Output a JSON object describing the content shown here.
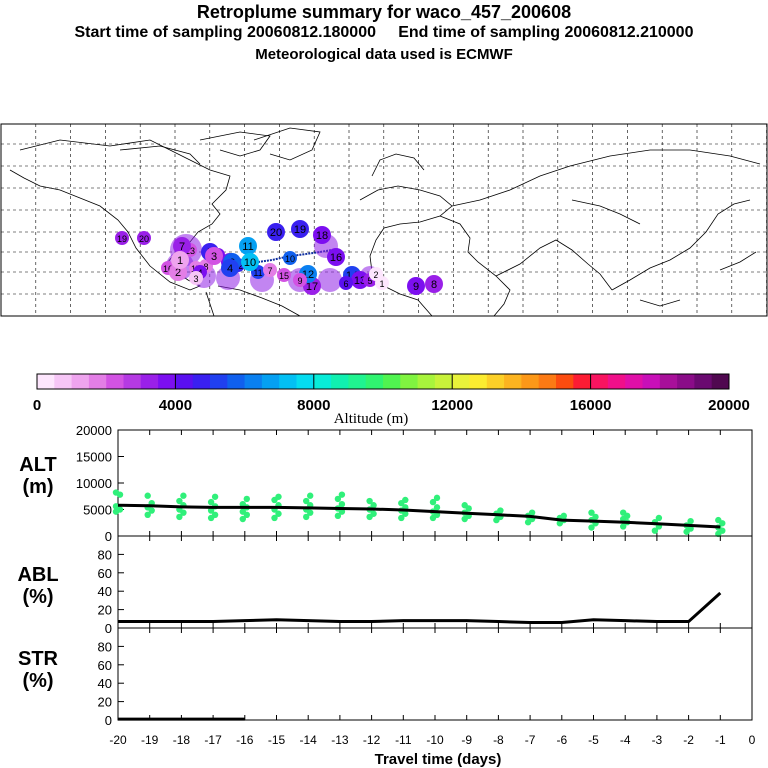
{
  "header": {
    "title": "Retroplume summary for waco_457_200608",
    "sampling_line": "Start time of sampling 20060812.180000     End time of sampling 20060812.210000",
    "met_line": "Meteorological data used is ECMWF"
  },
  "map": {
    "description_labels": [
      "20",
      "19",
      "18",
      "17",
      "16",
      "15",
      "14",
      "13",
      "12",
      "11",
      "10",
      "9",
      "8",
      "7",
      "6",
      "5",
      "4",
      "3",
      "2",
      "1"
    ],
    "markers": [
      {
        "day": 20,
        "alt": 4600
      },
      {
        "day": 19,
        "alt": 4800
      },
      {
        "day": 18,
        "alt": 3600
      },
      {
        "day": 17,
        "alt": 3400
      },
      {
        "day": 16,
        "alt": 3800
      },
      {
        "day": 15,
        "alt": 3500
      },
      {
        "day": 14,
        "alt": 5200
      },
      {
        "day": 13,
        "alt": 3800
      },
      {
        "day": 12,
        "alt": 6200
      },
      {
        "day": 11,
        "alt": 6800
      },
      {
        "day": 10,
        "alt": 7200
      },
      {
        "day": 9,
        "alt": 3600
      },
      {
        "day": 8,
        "alt": 3200
      },
      {
        "day": 7,
        "alt": 3000
      },
      {
        "day": 6,
        "alt": 5600
      },
      {
        "day": 5,
        "alt": 4800
      },
      {
        "day": 4,
        "alt": 5400
      },
      {
        "day": 3,
        "alt": 2200
      },
      {
        "day": 2,
        "alt": 1600
      },
      {
        "day": 1,
        "alt": 1000
      }
    ]
  },
  "colorbar": {
    "label": "Altitude (m)",
    "ticks": [
      "0",
      "4000",
      "8000",
      "12000",
      "16000",
      "20000"
    ],
    "colors": [
      "#fde6fd",
      "#f6c6f6",
      "#eea4ee",
      "#e37ee6",
      "#d253e3",
      "#b53ae3",
      "#9a20e8",
      "#7c0ff0",
      "#5a10f0",
      "#3a20f0",
      "#2040f0",
      "#1060ee",
      "#0a80f0",
      "#05a0f2",
      "#03c0f4",
      "#05dcf0",
      "#08ecd8",
      "#10f0b0",
      "#20f490",
      "#30f470",
      "#50f450",
      "#80f440",
      "#a8f43c",
      "#c8f23a",
      "#e8f23a",
      "#fcec30",
      "#fcd028",
      "#fcb420",
      "#fc9818",
      "#fc7a14",
      "#fc4c10",
      "#fc1c34",
      "#f81460",
      "#f0108a",
      "#e010a8",
      "#c810b8",
      "#a8109a",
      "#8a0c88",
      "#6a0a70",
      "#500850"
    ]
  },
  "chart_data": [
    {
      "type": "line",
      "panel": "ALT",
      "ylabel": "ALT\n(m)",
      "ylim": [
        0,
        20000
      ],
      "yticks": [
        "0",
        "5000",
        "10000",
        "15000",
        "20000"
      ],
      "x": [
        -20,
        -19,
        -18,
        -17,
        -16,
        -15,
        -14,
        -13,
        -12,
        -11,
        -10,
        -9,
        -8,
        -7,
        -6,
        -5,
        -4,
        -3,
        -2,
        -1
      ],
      "values": [
        5800,
        5700,
        5500,
        5400,
        5400,
        5400,
        5300,
        5200,
        5100,
        4900,
        4600,
        4300,
        4000,
        3700,
        3000,
        2800,
        2600,
        2300,
        2000,
        1700
      ],
      "scatter": [
        {
          "x": -20,
          "y": [
            4600,
            5000,
            5600,
            7800,
            8200
          ]
        },
        {
          "x": -19,
          "y": [
            4000,
            4800,
            5400,
            6200,
            7600
          ]
        },
        {
          "x": -18,
          "y": [
            3600,
            4400,
            5000,
            5800,
            6600,
            7600
          ]
        },
        {
          "x": -17,
          "y": [
            3400,
            4000,
            4800,
            5600,
            6400,
            7400
          ]
        },
        {
          "x": -16,
          "y": [
            3200,
            4000,
            4600,
            5400,
            6000,
            7000
          ]
        },
        {
          "x": -15,
          "y": [
            3400,
            4200,
            5000,
            5800,
            6800,
            7400
          ]
        },
        {
          "x": -14,
          "y": [
            3600,
            4400,
            5000,
            5800,
            6600,
            7600
          ]
        },
        {
          "x": -13,
          "y": [
            3800,
            4600,
            5200,
            6000,
            7000,
            7800
          ]
        },
        {
          "x": -12,
          "y": [
            3600,
            4200,
            5000,
            5800,
            6600
          ]
        },
        {
          "x": -11,
          "y": [
            3400,
            4200,
            4800,
            5400,
            6200,
            6800
          ]
        },
        {
          "x": -10,
          "y": [
            3400,
            4000,
            4600,
            5400,
            6400,
            7200
          ]
        },
        {
          "x": -9,
          "y": [
            3200,
            3800,
            4400,
            5200,
            5800
          ]
        },
        {
          "x": -8,
          "y": [
            3000,
            3600,
            4200,
            4800
          ]
        },
        {
          "x": -7,
          "y": [
            2600,
            3200,
            3800,
            4400
          ]
        },
        {
          "x": -6,
          "y": [
            2400,
            3000,
            3400,
            3800
          ]
        },
        {
          "x": -5,
          "y": [
            1600,
            2400,
            3000,
            3600,
            4400
          ]
        },
        {
          "x": -4,
          "y": [
            1800,
            2600,
            3200,
            3800,
            4400
          ]
        },
        {
          "x": -3,
          "y": [
            1000,
            1800,
            2600,
            3400
          ]
        },
        {
          "x": -2,
          "y": [
            800,
            1400,
            2000,
            2800
          ]
        },
        {
          "x": -1,
          "y": [
            400,
            1000,
            1600,
            2400,
            3000
          ]
        }
      ]
    },
    {
      "type": "line",
      "panel": "ABL",
      "ylabel": "ABL\n(%)",
      "ylim": [
        0,
        100
      ],
      "yticks": [
        "0",
        "20",
        "40",
        "60",
        "80"
      ],
      "x": [
        -20,
        -19,
        -18,
        -17,
        -16,
        -15,
        -14,
        -13,
        -12,
        -11,
        -10,
        -9,
        -8,
        -7,
        -6,
        -5,
        -4,
        -3,
        -2,
        -1
      ],
      "values": [
        7,
        7,
        7,
        7,
        8,
        9,
        8,
        7,
        7,
        8,
        8,
        8,
        7,
        6,
        6,
        9,
        8,
        7,
        7,
        38
      ]
    },
    {
      "type": "line",
      "panel": "STR",
      "ylabel": "STR\n(%)",
      "ylim": [
        0,
        100
      ],
      "yticks": [
        "0",
        "20",
        "40",
        "60",
        "80"
      ],
      "x": [
        -20,
        -19,
        -18,
        -17,
        -16
      ],
      "values": [
        1,
        1,
        1,
        1,
        1
      ]
    }
  ],
  "xaxis": {
    "label": "Travel time (days)",
    "ticks": [
      "-20",
      "-19",
      "-18",
      "-17",
      "-16",
      "-15",
      "-14",
      "-13",
      "-12",
      "-11",
      "-10",
      "-9",
      "-8",
      "-7",
      "-6",
      "-5",
      "-4",
      "-3",
      "-2",
      "-1",
      "0"
    ]
  }
}
